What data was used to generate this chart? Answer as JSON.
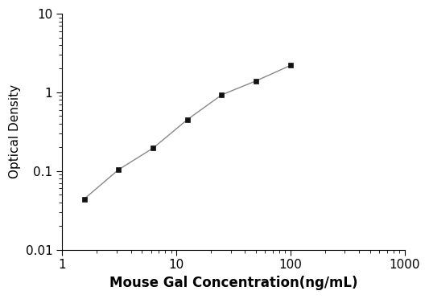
{
  "x": [
    1.56,
    3.12,
    6.25,
    12.5,
    25,
    50,
    100
  ],
  "y": [
    0.044,
    0.104,
    0.195,
    0.45,
    0.93,
    1.4,
    2.2
  ],
  "xlabel": "Mouse Gal Concentration(ng/mL)",
  "ylabel": "Optical Density",
  "xlim": [
    1,
    1000
  ],
  "ylim": [
    0.01,
    10
  ],
  "xticks": [
    1,
    10,
    100,
    1000
  ],
  "yticks": [
    0.01,
    0.1,
    1,
    10
  ],
  "marker": "s",
  "marker_color": "#111111",
  "line_color": "#888888",
  "marker_size": 5,
  "line_width": 1.0,
  "background_color": "#ffffff",
  "xlabel_fontsize": 12,
  "ylabel_fontsize": 11,
  "tick_fontsize": 11
}
